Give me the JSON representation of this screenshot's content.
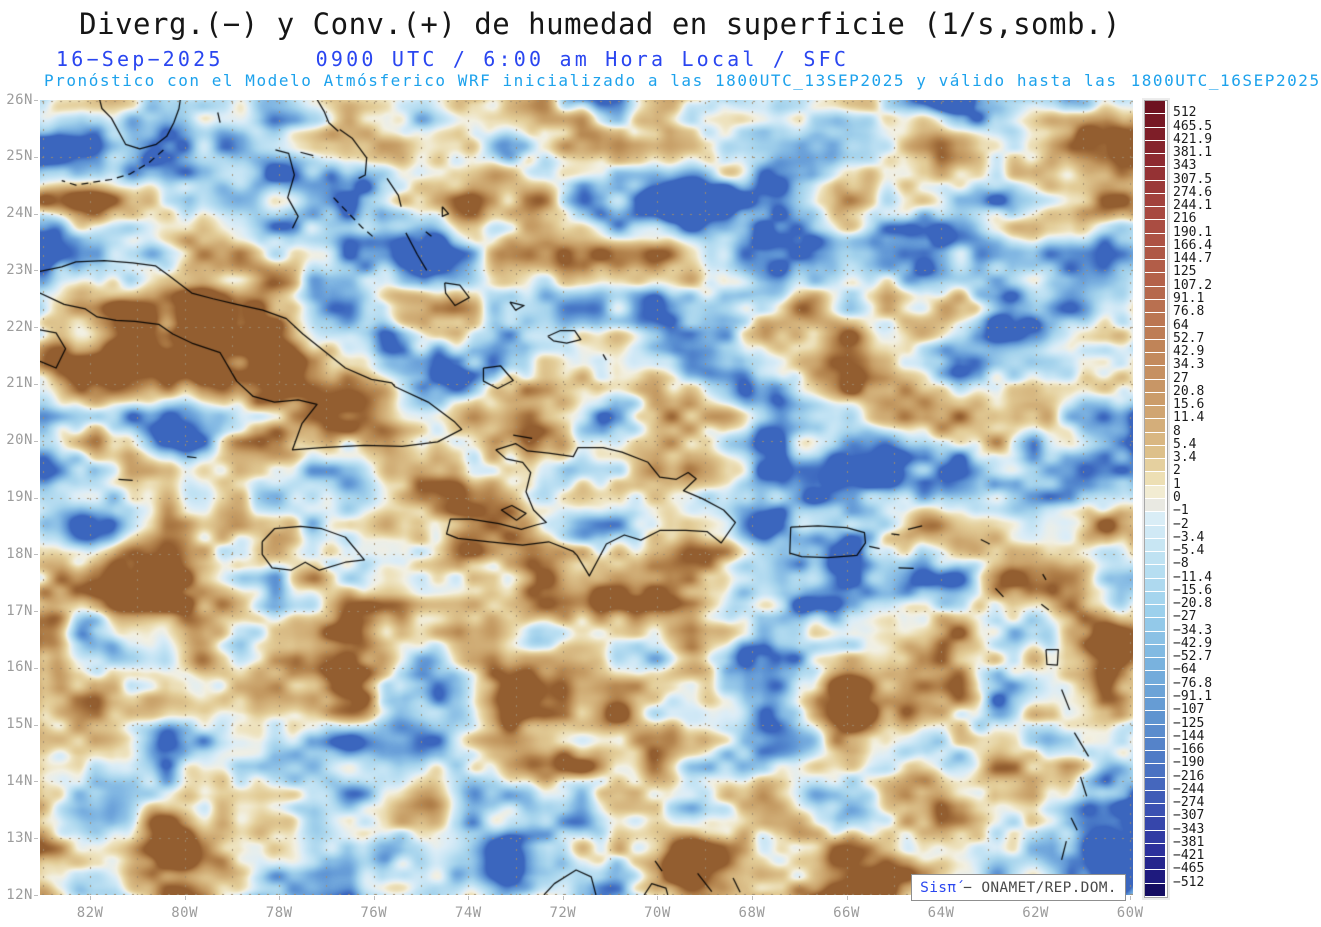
{
  "header": {
    "title": "Diverg.(−) y Conv.(+) de humedad en superficie (1/s,somb.)",
    "date": "16−Sep−2025",
    "time_info": "0900 UTC / 6:00 am Hora Local / SFC",
    "model_info": "Pronóstico con el Modelo Atmósferico WRF inicializado a las 1800UTC_13SEP2025 y válido hasta las",
    "valid_until": "1800UTC_16SEP2025"
  },
  "map": {
    "lat_labels": [
      "26N",
      "25N",
      "24N",
      "23N",
      "22N",
      "21N",
      "20N",
      "19N",
      "18N",
      "17N",
      "16N",
      "15N",
      "14N",
      "13N",
      "12N"
    ],
    "lon_labels": [
      "82W",
      "80W",
      "78W",
      "76W",
      "74W",
      "72W",
      "70W",
      "68W",
      "66W",
      "64W",
      "62W",
      "60W"
    ],
    "attribution": {
      "brand": "Sisπ́",
      "text": "− ONAMET/REP.DOM."
    }
  },
  "colorbar": {
    "labels": [
      "512",
      "465.5",
      "421.9",
      "381.1",
      "343",
      "307.5",
      "274.6",
      "244.1",
      "216",
      "190.1",
      "166.4",
      "144.7",
      "125",
      "107.2",
      "91.1",
      "76.8",
      "64",
      "52.7",
      "42.9",
      "34.3",
      "27",
      "20.8",
      "15.6",
      "11.4",
      "8",
      "5.4",
      "3.4",
      "2",
      "1",
      "0",
      "−1",
      "−2",
      "−3.4",
      "−5.4",
      "−8",
      "−11.4",
      "−15.6",
      "−20.8",
      "−27",
      "−34.3",
      "−42.9",
      "−52.7",
      "−64",
      "−76.8",
      "−91.1",
      "−107",
      "−125",
      "−144",
      "−166",
      "−190",
      "−216",
      "−244",
      "−274",
      "−307",
      "−343",
      "−381",
      "−421",
      "−465",
      "−512"
    ]
  },
  "colors": {
    "title_text": "#161616",
    "date_text": "#2a46f0",
    "model_text": "#1da2ec",
    "axis_text": "#9c9c9c",
    "colorbar_text": "#1a1a1a",
    "attribution_brand": "#2a46f0",
    "attribution_text": "#4a4a4a",
    "scale_positive_max": "#6e1220",
    "scale_positive_mid": "#c08458",
    "scale_neutral": "#e9e9e2",
    "scale_negative_mid": "#79b2de",
    "scale_negative_max": "#140c62",
    "coastline": "#000000"
  }
}
